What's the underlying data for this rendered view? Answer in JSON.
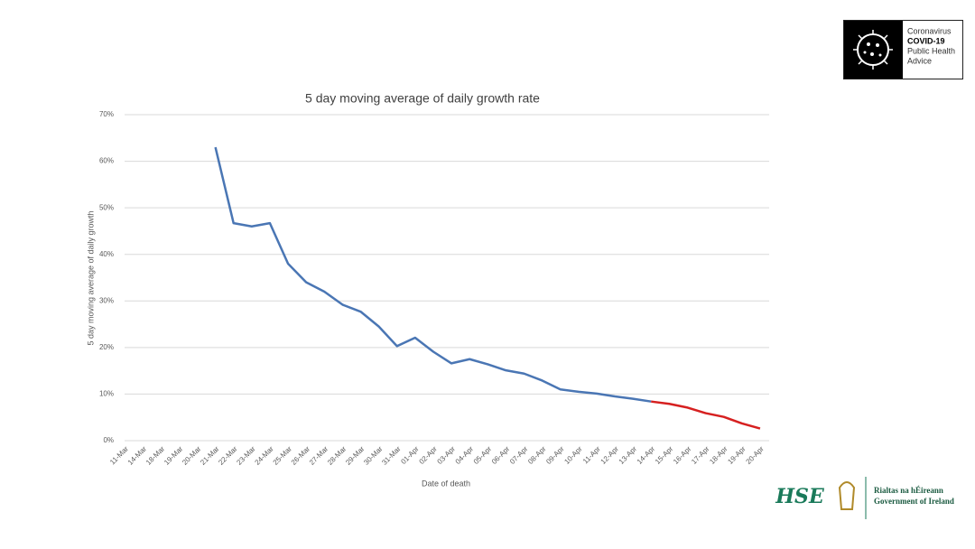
{
  "chart_data": {
    "type": "line",
    "title": "5 day moving average of daily growth rate",
    "x_label": "Date of death",
    "y_label": "5 day moving average of daily growth",
    "categories": [
      "11-Mar",
      "14-Mar",
      "18-Mar",
      "19-Mar",
      "20-Mar",
      "21-Mar",
      "22-Mar",
      "23-Mar",
      "24-Mar",
      "25-Mar",
      "26-Mar",
      "27-Mar",
      "28-Mar",
      "29-Mar",
      "30-Mar",
      "31-Mar",
      "01-Apr",
      "02-Apr",
      "03-Apr",
      "04-Apr",
      "05-Apr",
      "06-Apr",
      "07-Apr",
      "08-Apr",
      "09-Apr",
      "10-Apr",
      "11-Apr",
      "12-Apr",
      "13-Apr",
      "14-Apr",
      "15-Apr",
      "16-Apr",
      "17-Apr",
      "18-Apr",
      "19-Apr",
      "20-Apr"
    ],
    "series": [
      {
        "color": "#4a76b4",
        "values": [
          null,
          null,
          null,
          null,
          null,
          63,
          46.7,
          46,
          46.7,
          38,
          34,
          32,
          29.2,
          27.7,
          24.5,
          20.3,
          22.1,
          19.1,
          16.6,
          17.5,
          16.4,
          15.1,
          14.4,
          12.9,
          11,
          10.5,
          10.1,
          9.5,
          9,
          8.4,
          null,
          null,
          null,
          null,
          null,
          null
        ]
      },
      {
        "color": "#d62020",
        "values": [
          null,
          null,
          null,
          null,
          null,
          null,
          null,
          null,
          null,
          null,
          null,
          null,
          null,
          null,
          null,
          null,
          null,
          null,
          null,
          null,
          null,
          null,
          null,
          null,
          null,
          null,
          null,
          null,
          null,
          8.4,
          7.9,
          7.1,
          5.9,
          5.1,
          3.7,
          2.6
        ]
      }
    ],
    "ylim": [
      0,
      70
    ],
    "yticks": [
      {
        "value": 0,
        "label": "0%"
      },
      {
        "value": 10,
        "label": "10%"
      },
      {
        "value": 20,
        "label": "20%"
      },
      {
        "value": 30,
        "label": "30%"
      },
      {
        "value": 40,
        "label": "40%"
      },
      {
        "value": 50,
        "label": "50%"
      },
      {
        "value": 60,
        "label": "60%"
      },
      {
        "value": 70,
        "label": "70%"
      }
    ],
    "grid": true
  },
  "branding": {
    "badge": [
      "Coronavirus",
      "COVID-19",
      "Public Health",
      "Advice"
    ],
    "hse": "HSE",
    "government": [
      "Rialtas na hÉireann",
      "Government of Ireland"
    ]
  }
}
